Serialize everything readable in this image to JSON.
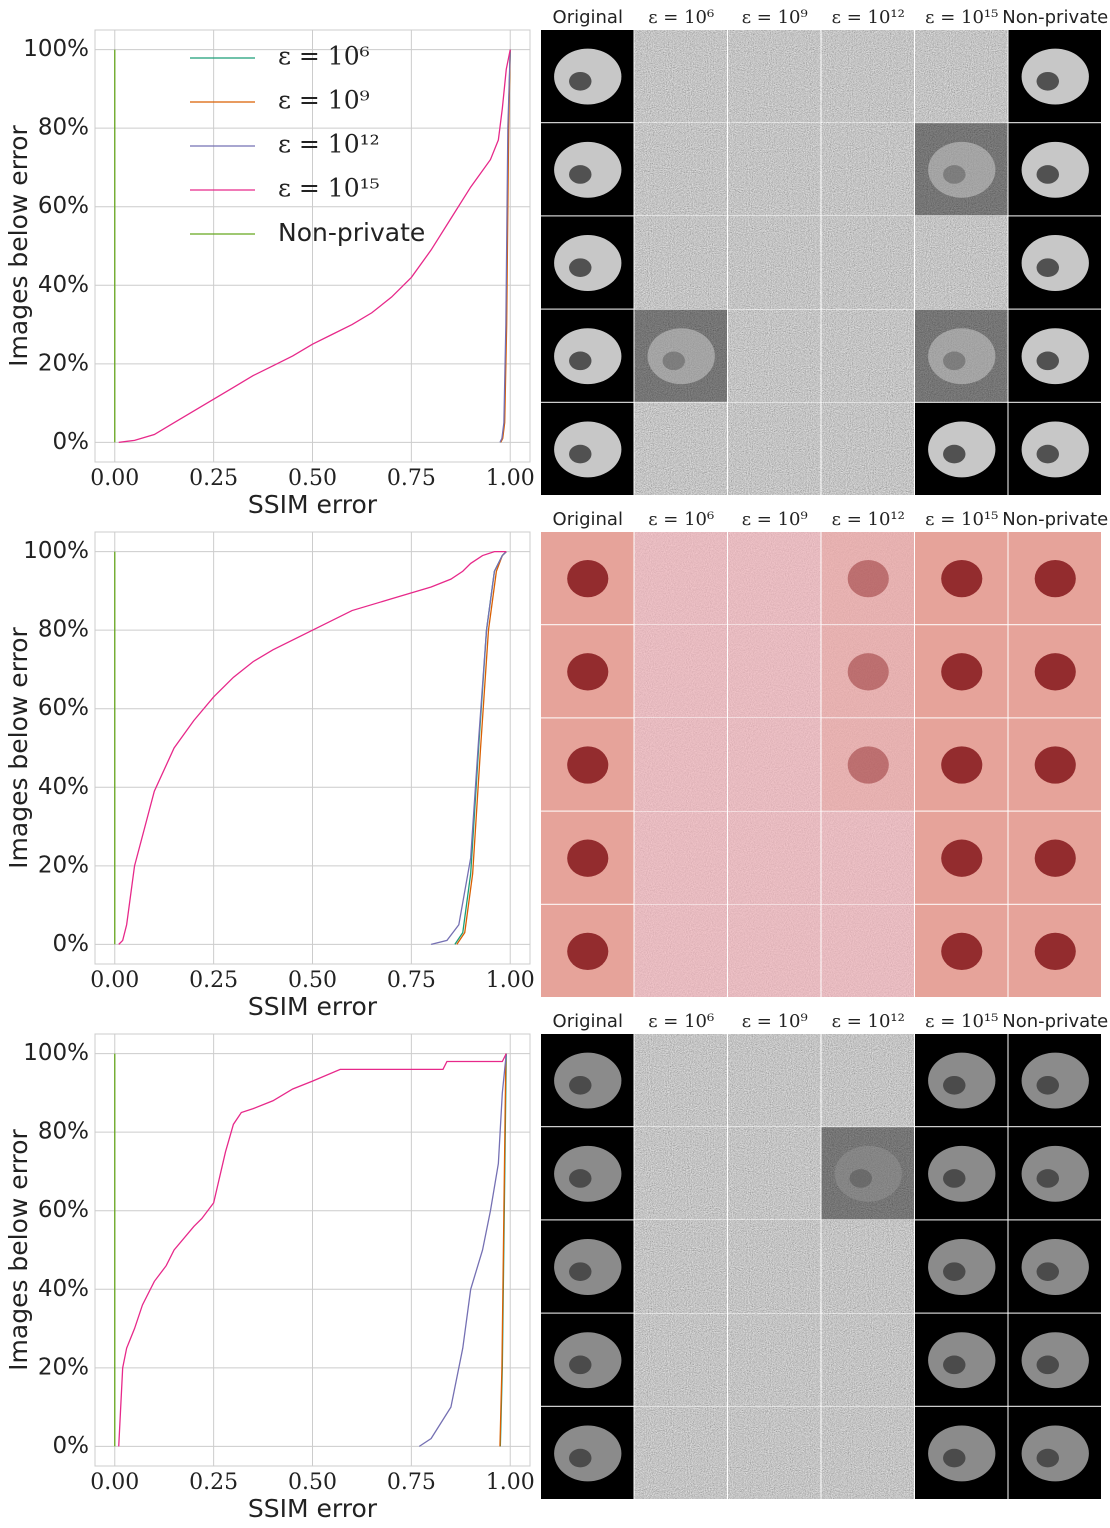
{
  "chart_data": [
    {
      "type": "line",
      "xlabel": "SSIM error",
      "ylabel": "Images below error",
      "legend": "upper center",
      "grid": true,
      "xlim": [
        -0.05,
        1.05
      ],
      "ylim": [
        -5,
        105
      ],
      "xticks": [
        {
          "value": 0,
          "label": "0.00"
        },
        {
          "value": 0.25,
          "label": "0.25"
        },
        {
          "value": 0.5,
          "label": "0.50"
        },
        {
          "value": 0.75,
          "label": "0.75"
        },
        {
          "value": 1,
          "label": "1.00"
        }
      ],
      "yticks": [
        {
          "value": 0,
          "label": "0%"
        },
        {
          "value": 20,
          "label": "20%"
        },
        {
          "value": 40,
          "label": "40%"
        },
        {
          "value": 60,
          "label": "60%"
        },
        {
          "value": 80,
          "label": "80%"
        },
        {
          "value": 100,
          "label": "100%"
        }
      ],
      "series": [
        {
          "name": "ε = 10⁶",
          "color": "#1b9e77",
          "x": [
            0.975,
            0.98,
            0.985,
            0.99,
            0.995,
            1.0
          ],
          "values": [
            0,
            1,
            5,
            30,
            80,
            100
          ]
        },
        {
          "name": "ε = 10⁹",
          "color": "#d95f02",
          "x": [
            0.976,
            0.981,
            0.986,
            0.991,
            0.996,
            1.0
          ],
          "values": [
            0,
            1,
            5,
            30,
            80,
            100
          ]
        },
        {
          "name": "ε = 10¹²",
          "color": "#7570b3",
          "x": [
            0.974,
            0.979,
            0.984,
            0.989,
            0.994,
            1.0
          ],
          "values": [
            0,
            1,
            5,
            30,
            80,
            100
          ]
        },
        {
          "name": "ε = 10¹⁵",
          "color": "#e7298a",
          "x": [
            0.01,
            0.05,
            0.1,
            0.15,
            0.2,
            0.25,
            0.3,
            0.35,
            0.4,
            0.45,
            0.5,
            0.55,
            0.6,
            0.65,
            0.7,
            0.75,
            0.8,
            0.85,
            0.9,
            0.95,
            0.97,
            0.98,
            0.99,
            1.0
          ],
          "values": [
            0,
            0.5,
            2,
            5,
            8,
            11,
            14,
            17,
            19.5,
            22,
            25,
            27.5,
            30,
            33,
            37,
            42,
            49,
            57,
            65,
            72,
            77,
            85,
            95,
            100
          ]
        },
        {
          "name": "Non-private",
          "color": "#66a61e",
          "x": [
            0,
            0
          ],
          "values": [
            0,
            100
          ]
        }
      ]
    },
    {
      "type": "line",
      "xlabel": "SSIM error",
      "ylabel": "Images below error",
      "grid": true,
      "xlim": [
        -0.05,
        1.05
      ],
      "ylim": [
        -5,
        105
      ],
      "xticks": [
        {
          "value": 0,
          "label": "0.00"
        },
        {
          "value": 0.25,
          "label": "0.25"
        },
        {
          "value": 0.5,
          "label": "0.50"
        },
        {
          "value": 0.75,
          "label": "0.75"
        },
        {
          "value": 1,
          "label": "1.00"
        }
      ],
      "yticks": [
        {
          "value": 0,
          "label": "0%"
        },
        {
          "value": 20,
          "label": "20%"
        },
        {
          "value": 40,
          "label": "40%"
        },
        {
          "value": 60,
          "label": "60%"
        },
        {
          "value": 80,
          "label": "80%"
        },
        {
          "value": 100,
          "label": "100%"
        }
      ],
      "series": [
        {
          "name": "ε = 10⁶",
          "color": "#1b9e77",
          "x": [
            0.86,
            0.88,
            0.9,
            0.92,
            0.94,
            0.96,
            0.98,
            0.99
          ],
          "values": [
            0,
            3,
            18,
            50,
            80,
            95,
            99,
            100
          ]
        },
        {
          "name": "ε = 10⁹",
          "color": "#d95f02",
          "x": [
            0.865,
            0.885,
            0.905,
            0.925,
            0.945,
            0.965,
            0.98,
            0.99
          ],
          "values": [
            0,
            3,
            18,
            50,
            80,
            95,
            99,
            100
          ]
        },
        {
          "name": "ε = 10¹²",
          "color": "#7570b3",
          "x": [
            0.8,
            0.84,
            0.87,
            0.9,
            0.92,
            0.94,
            0.96,
            0.98,
            0.99
          ],
          "values": [
            0,
            1,
            5,
            22,
            52,
            80,
            95,
            99,
            100
          ]
        },
        {
          "name": "ε = 10¹⁵",
          "color": "#e7298a",
          "x": [
            0.01,
            0.02,
            0.03,
            0.05,
            0.1,
            0.15,
            0.2,
            0.25,
            0.3,
            0.35,
            0.4,
            0.5,
            0.6,
            0.7,
            0.8,
            0.85,
            0.88,
            0.9,
            0.93,
            0.96,
            0.99
          ],
          "values": [
            0,
            1,
            5,
            20,
            39,
            50,
            57,
            63,
            68,
            72,
            75,
            80,
            85,
            88,
            91,
            93,
            95,
            97,
            99,
            100,
            100
          ]
        },
        {
          "name": "Non-private",
          "color": "#66a61e",
          "x": [
            0,
            0
          ],
          "values": [
            0,
            100
          ]
        }
      ]
    },
    {
      "type": "line",
      "xlabel": "SSIM error",
      "ylabel": "Images below error",
      "grid": true,
      "xlim": [
        -0.05,
        1.05
      ],
      "ylim": [
        -5,
        105
      ],
      "xticks": [
        {
          "value": 0,
          "label": "0.00"
        },
        {
          "value": 0.25,
          "label": "0.25"
        },
        {
          "value": 0.5,
          "label": "0.50"
        },
        {
          "value": 0.75,
          "label": "0.75"
        },
        {
          "value": 1,
          "label": "1.00"
        }
      ],
      "yticks": [
        {
          "value": 0,
          "label": "0%"
        },
        {
          "value": 20,
          "label": "20%"
        },
        {
          "value": 40,
          "label": "40%"
        },
        {
          "value": 60,
          "label": "60%"
        },
        {
          "value": 80,
          "label": "80%"
        },
        {
          "value": 100,
          "label": "100%"
        }
      ],
      "series": [
        {
          "name": "ε = 10⁶",
          "color": "#1b9e77",
          "x": [
            0.975,
            0.98,
            0.985,
            0.99
          ],
          "values": [
            0,
            20,
            60,
            100
          ]
        },
        {
          "name": "ε = 10⁹",
          "color": "#d95f02",
          "x": [
            0.974,
            0.979,
            0.984,
            0.989
          ],
          "values": [
            0,
            20,
            60,
            100
          ]
        },
        {
          "name": "ε = 10¹²",
          "color": "#7570b3",
          "x": [
            0.77,
            0.8,
            0.85,
            0.88,
            0.9,
            0.93,
            0.95,
            0.97,
            0.98,
            0.99
          ],
          "values": [
            0,
            2,
            10,
            25,
            40,
            50,
            60,
            72,
            90,
            100
          ]
        },
        {
          "name": "ε = 10¹⁵",
          "color": "#e7298a",
          "x": [
            0.01,
            0.02,
            0.03,
            0.05,
            0.07,
            0.1,
            0.13,
            0.15,
            0.2,
            0.22,
            0.25,
            0.28,
            0.3,
            0.32,
            0.35,
            0.4,
            0.45,
            0.5,
            0.57,
            0.83,
            0.84,
            0.98,
            0.99
          ],
          "values": [
            0,
            20,
            25,
            30,
            36,
            42,
            46,
            50,
            56,
            58,
            62,
            75,
            82,
            85,
            86,
            88,
            91,
            93,
            96,
            96,
            98,
            98,
            100
          ]
        },
        {
          "name": "Non-private",
          "color": "#66a61e",
          "x": [
            0,
            0
          ],
          "values": [
            0,
            100
          ]
        }
      ]
    }
  ],
  "image_grids": [
    {
      "columns": [
        "Original",
        "ε = 10⁶",
        "ε = 10⁹",
        "ε = 10¹²",
        "ε = 10¹⁵",
        "Non-private"
      ]
    },
    {
      "columns": [
        "Original",
        "ε = 10⁶",
        "ε = 10⁹",
        "ε = 10¹²",
        "ε = 10¹⁵",
        "Non-private"
      ]
    },
    {
      "columns": [
        "Original",
        "ε = 10⁶",
        "ε = 10⁹",
        "ε = 10¹²",
        "ε = 10¹⁵",
        "Non-private"
      ]
    }
  ]
}
